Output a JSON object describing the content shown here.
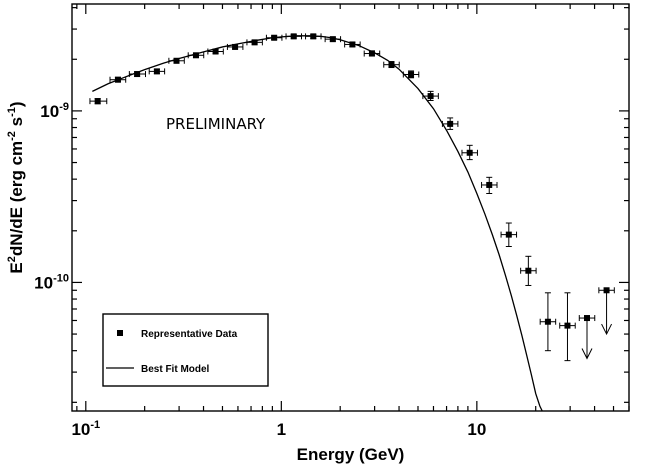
{
  "chart_data": {
    "type": "scatter",
    "x_scale": "log",
    "y_scale": "log",
    "xlim": [
      0.085,
      60
    ],
    "ylim": [
      1.78e-11,
      4.2e-09
    ],
    "xlabel": "Energy (GeV)",
    "ylabel": {
      "prefix": "E",
      "sup1": "2",
      "mid": "dN/dE (erg cm",
      "sup2": "-2",
      "mid2": " s",
      "sup3": "-1",
      "suffix": ")"
    },
    "x_ticks": [
      {
        "value": 0.1,
        "base": "10",
        "exp": "-1"
      },
      {
        "value": 1,
        "base": "1",
        "exp": ""
      },
      {
        "value": 10,
        "base": "10",
        "exp": ""
      }
    ],
    "y_ticks": [
      {
        "value": 1e-09,
        "base": "10",
        "exp": "-9"
      },
      {
        "value": 1e-10,
        "base": "10",
        "exp": "-10"
      }
    ],
    "annotation": "PRELIMINARY",
    "legend": {
      "position": "bottom-left",
      "items": [
        {
          "label": "Representative Data",
          "kind": "marker"
        },
        {
          "label": "Best Fit Model",
          "kind": "line"
        }
      ]
    },
    "series": [
      {
        "name": "Representative Data",
        "points": [
          {
            "x": 0.115,
            "y": 1.14e-09,
            "xlo": 0.105,
            "xhi": 0.128,
            "ylo": 1.1e-09,
            "yhi": 1.18e-09
          },
          {
            "x": 0.146,
            "y": 1.52e-09,
            "xlo": 0.133,
            "xhi": 0.16,
            "ylo": 1.48e-09,
            "yhi": 1.57e-09
          },
          {
            "x": 0.183,
            "y": 1.64e-09,
            "xlo": 0.167,
            "xhi": 0.202,
            "ylo": 1.59e-09,
            "yhi": 1.69e-09
          },
          {
            "x": 0.231,
            "y": 1.7e-09,
            "xlo": 0.211,
            "xhi": 0.253,
            "ylo": 1.65e-09,
            "yhi": 1.75e-09
          },
          {
            "x": 0.291,
            "y": 1.96e-09,
            "xlo": 0.266,
            "xhi": 0.319,
            "ylo": 1.9e-09,
            "yhi": 2.02e-09
          },
          {
            "x": 0.366,
            "y": 2.11e-09,
            "xlo": 0.334,
            "xhi": 0.401,
            "ylo": 2.05e-09,
            "yhi": 2.17e-09
          },
          {
            "x": 0.461,
            "y": 2.22e-09,
            "xlo": 0.421,
            "xhi": 0.505,
            "ylo": 2.16e-09,
            "yhi": 2.28e-09
          },
          {
            "x": 0.58,
            "y": 2.36e-09,
            "xlo": 0.53,
            "xhi": 0.636,
            "ylo": 2.3e-09,
            "yhi": 2.42e-09
          },
          {
            "x": 0.73,
            "y": 2.51e-09,
            "xlo": 0.667,
            "xhi": 0.8,
            "ylo": 2.45e-09,
            "yhi": 2.57e-09
          },
          {
            "x": 0.919,
            "y": 2.67e-09,
            "xlo": 0.839,
            "xhi": 1.007,
            "ylo": 2.61e-09,
            "yhi": 2.73e-09
          },
          {
            "x": 1.157,
            "y": 2.72e-09,
            "xlo": 1.057,
            "xhi": 1.268,
            "ylo": 2.66e-09,
            "yhi": 2.79e-09
          },
          {
            "x": 1.457,
            "y": 2.72e-09,
            "xlo": 1.33,
            "xhi": 1.596,
            "ylo": 2.65e-09,
            "yhi": 2.79e-09
          },
          {
            "x": 1.834,
            "y": 2.62e-09,
            "xlo": 1.675,
            "xhi": 2.009,
            "ylo": 2.55e-09,
            "yhi": 2.69e-09
          },
          {
            "x": 2.309,
            "y": 2.44e-09,
            "xlo": 2.108,
            "xhi": 2.53,
            "ylo": 2.37e-09,
            "yhi": 2.51e-09
          },
          {
            "x": 2.907,
            "y": 2.16e-09,
            "xlo": 2.654,
            "xhi": 3.185,
            "ylo": 2.09e-09,
            "yhi": 2.24e-09
          },
          {
            "x": 3.659,
            "y": 1.86e-09,
            "xlo": 3.341,
            "xhi": 4.009,
            "ylo": 1.79e-09,
            "yhi": 1.94e-09
          },
          {
            "x": 4.607,
            "y": 1.63e-09,
            "xlo": 4.207,
            "xhi": 5.047,
            "ylo": 1.56e-09,
            "yhi": 1.71e-09
          },
          {
            "x": 5.8,
            "y": 1.22e-09,
            "xlo": 5.296,
            "xhi": 6.354,
            "ylo": 1.15e-09,
            "yhi": 1.3e-09
          },
          {
            "x": 7.302,
            "y": 8.4e-10,
            "xlo": 6.667,
            "xhi": 7.999,
            "ylo": 7.8e-10,
            "yhi": 9.1e-10
          },
          {
            "x": 9.192,
            "y": 5.7e-10,
            "xlo": 8.393,
            "xhi": 10.07,
            "ylo": 5.2e-10,
            "yhi": 6.3e-10
          },
          {
            "x": 11.57,
            "y": 3.7e-10,
            "xlo": 10.57,
            "xhi": 12.68,
            "ylo": 3.3e-10,
            "yhi": 4.1e-10
          },
          {
            "x": 14.57,
            "y": 1.9e-10,
            "xlo": 13.3,
            "xhi": 15.96,
            "ylo": 1.62e-10,
            "yhi": 2.22e-10
          },
          {
            "x": 18.34,
            "y": 1.17e-10,
            "xlo": 16.75,
            "xhi": 20.09,
            "ylo": 9.6e-11,
            "yhi": 1.42e-10
          },
          {
            "x": 23.09,
            "y": 5.9e-11,
            "xlo": 21.08,
            "xhi": 25.3,
            "ylo": 4e-11,
            "yhi": 8.7e-11
          },
          {
            "x": 29.07,
            "y": 5.6e-11,
            "xlo": 26.54,
            "xhi": 31.85,
            "ylo": 3.5e-11,
            "yhi": 8.7e-11
          },
          {
            "x": 36.59,
            "y": 6.2e-11,
            "xlo": 33.41,
            "xhi": 40.09,
            "upper_limit": true,
            "arrow_to": 3.6e-11
          },
          {
            "x": 46.07,
            "y": 9e-11,
            "xlo": 42.07,
            "xhi": 50.47,
            "upper_limit": true,
            "arrow_to": 5e-11
          }
        ]
      },
      {
        "name": "Best Fit Model",
        "kind": "line",
        "x": [
          0.108,
          0.13,
          0.16,
          0.2,
          0.25,
          0.3,
          0.4,
          0.5,
          0.6,
          0.75,
          0.9,
          1.0,
          1.2,
          1.4,
          1.6,
          1.8,
          2.0,
          2.5,
          3.0,
          3.5,
          4.0,
          5.0,
          6.0,
          7.0,
          8.0,
          9.0,
          10.0,
          11.0,
          12.0,
          13.0,
          14.0,
          15.0,
          16.0,
          17.0,
          18.0,
          19.0,
          20.0,
          21.0,
          21.6
        ],
        "y": [
          1.3e-09,
          1.44e-09,
          1.58e-09,
          1.74e-09,
          1.9e-09,
          2.02e-09,
          2.21e-09,
          2.36e-09,
          2.46e-09,
          2.58e-09,
          2.67e-09,
          2.7e-09,
          2.74e-09,
          2.74e-09,
          2.72e-09,
          2.67e-09,
          2.6e-09,
          2.4e-09,
          2.18e-09,
          1.97e-09,
          1.75e-09,
          1.35e-09,
          1.03e-09,
          7.7e-10,
          5.8e-10,
          4.4e-10,
          3.3e-10,
          2.5e-10,
          1.9e-10,
          1.45e-10,
          1.1e-10,
          8.4e-11,
          6.4e-11,
          4.9e-11,
          3.75e-11,
          2.9e-11,
          2.25e-11,
          1.9e-11,
          1.78e-11
        ]
      }
    ]
  }
}
